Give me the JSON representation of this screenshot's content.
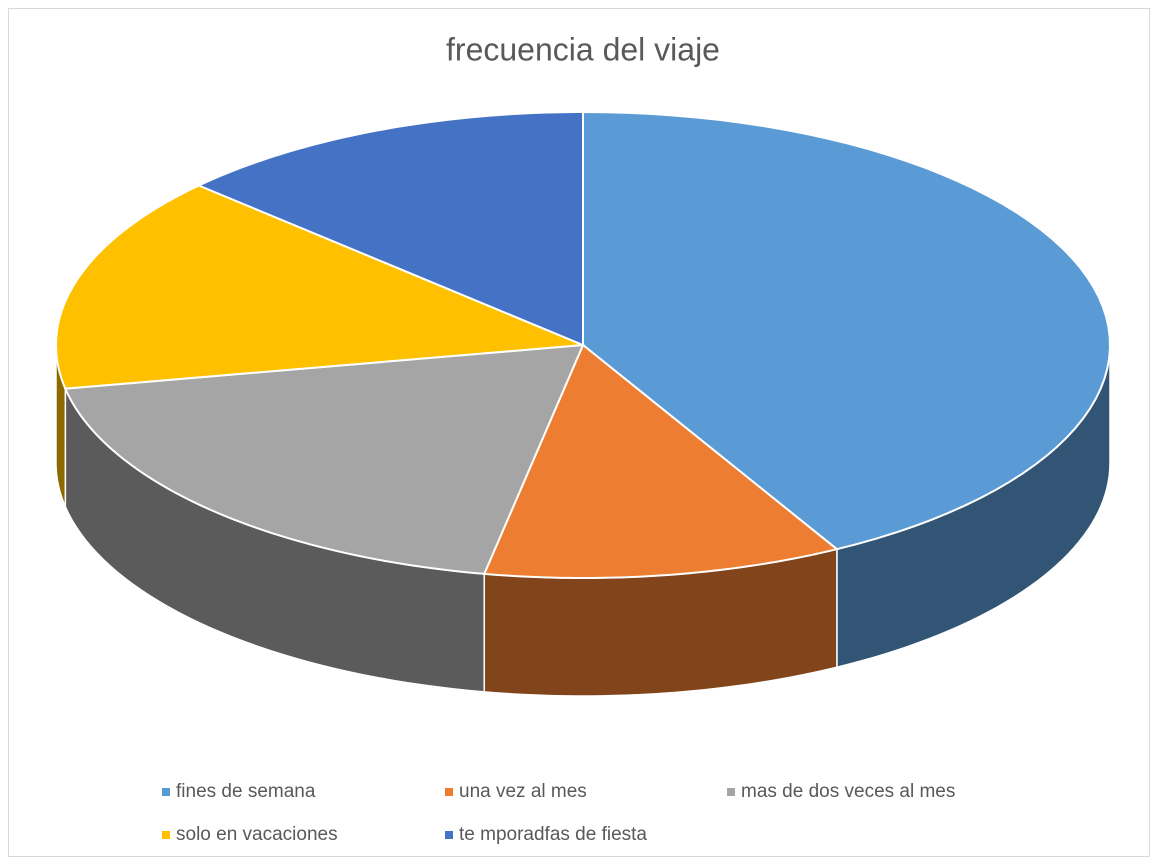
{
  "chart_data": {
    "type": "pie",
    "title": "frecuencia del viaje",
    "categories": [
      "fines de semana",
      "una vez al mes",
      "mas de dos veces al mes",
      "solo en vacaciones",
      "te mporadfas de fiesta"
    ],
    "values": [
      42,
      11,
      19,
      15,
      13
    ],
    "colors": [
      "#5b9bd5",
      "#ed7d31",
      "#a5a5a5",
      "#ffc000",
      "#4472c4"
    ],
    "legend": "bottom"
  }
}
